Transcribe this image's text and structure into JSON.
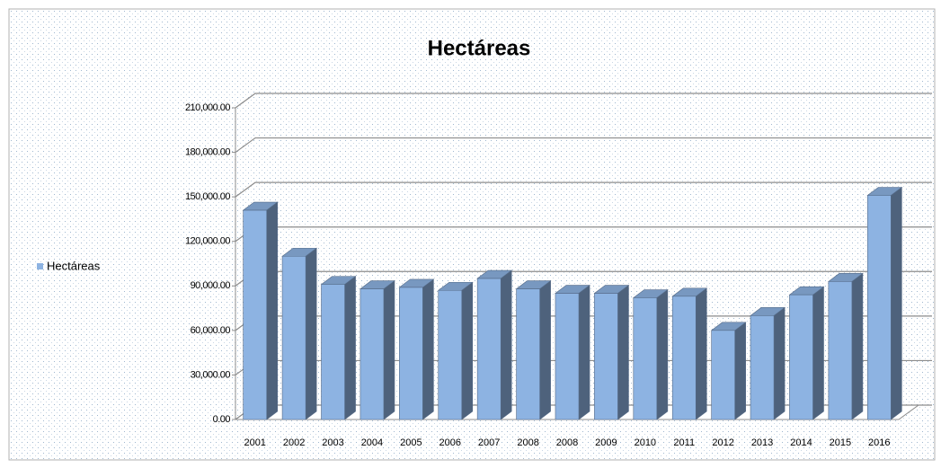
{
  "chart_data": {
    "type": "bar3d",
    "title": "Hectáreas",
    "categories": [
      "2001",
      "2002",
      "2003",
      "2004",
      "2005",
      "2006",
      "2007",
      "2008",
      "2008",
      "2009",
      "2010",
      "2011",
      "2012",
      "2013",
      "2014",
      "2015",
      "2016"
    ],
    "series": [
      {
        "name": "Hectáreas",
        "color": "#8db3e2",
        "values": [
          141000,
          110000,
          91000,
          88000,
          89000,
          87000,
          95000,
          88000,
          85000,
          85000,
          82000,
          83000,
          60000,
          70000,
          84000,
          93000,
          151000
        ]
      }
    ],
    "ylim": [
      0,
      210000
    ],
    "yticks": [
      {
        "value": 0,
        "label": "0.00"
      },
      {
        "value": 30000,
        "label": "30,000.00"
      },
      {
        "value": 60000,
        "label": "60,000.00"
      },
      {
        "value": 90000,
        "label": "90,000.00"
      },
      {
        "value": 120000,
        "label": "120,000.00"
      },
      {
        "value": 150000,
        "label": "150,000.00"
      },
      {
        "value": 180000,
        "label": "180,000.00"
      },
      {
        "value": 210000,
        "label": "210,000.00"
      }
    ],
    "grid": true,
    "legend": "left"
  }
}
